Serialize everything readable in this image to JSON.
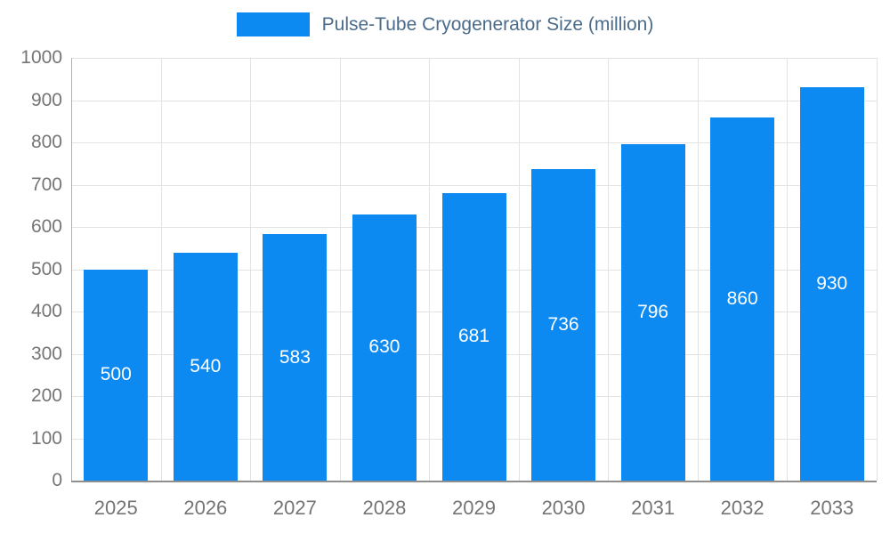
{
  "legend": {
    "label": "Pulse-Tube Cryogenerator Size (million)"
  },
  "colors": {
    "bar": "#0d8af2",
    "legend_text": "#4a6b8a",
    "axis_text": "#757575",
    "grid": "#e3e3e3",
    "axis_line_y": "#b0b0b0",
    "axis_line_x": "#8f8f8f",
    "value_label": "#ffffff",
    "background": "#ffffff"
  },
  "chart_data": {
    "type": "bar",
    "title": "Pulse-Tube Cryogenerator Size (million)",
    "categories": [
      "2025",
      "2026",
      "2027",
      "2028",
      "2029",
      "2030",
      "2031",
      "2032",
      "2033"
    ],
    "values": [
      500,
      540,
      583,
      630,
      681,
      736,
      796,
      860,
      930
    ],
    "xlabel": "",
    "ylabel": "",
    "ylim": [
      0,
      1000
    ],
    "ytick_step": 100,
    "ytick_labels": [
      "0",
      "100",
      "200",
      "300",
      "400",
      "500",
      "600",
      "700",
      "800",
      "900",
      "1000"
    ],
    "grid": true,
    "legend_position": "top-center",
    "value_labels": "inside-middle",
    "bar_color": "#0d8af2"
  }
}
